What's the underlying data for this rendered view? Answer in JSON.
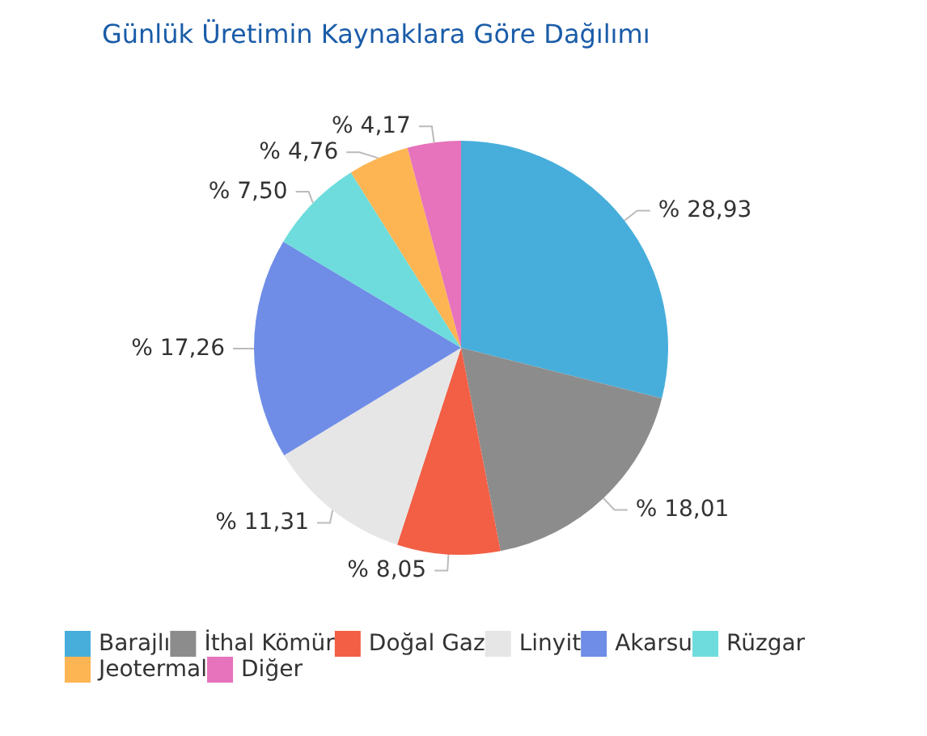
{
  "chart_data": {
    "type": "pie",
    "title": "Günlük Üretimin Kaynaklara Göre Dağılımı",
    "categories": [
      "Barajlı",
      "İthal Kömür",
      "Doğal Gaz",
      "Linyit",
      "Akarsu",
      "Rüzgar",
      "Jeotermal",
      "Diğer"
    ],
    "values": [
      28.93,
      18.01,
      8.05,
      11.31,
      17.26,
      7.5,
      4.76,
      4.17
    ],
    "value_labels": [
      "% 28,93",
      "% 18,01",
      "% 8,05",
      "% 11,31",
      "% 17,26",
      "% 7,50",
      "% 4,76",
      "% 4,17"
    ],
    "colors": [
      "#47aedb",
      "#8c8c8c",
      "#f25f45",
      "#e6e6e6",
      "#6f8de6",
      "#6edcdc",
      "#fdb553",
      "#e673bb"
    ],
    "legend": "bottom"
  }
}
